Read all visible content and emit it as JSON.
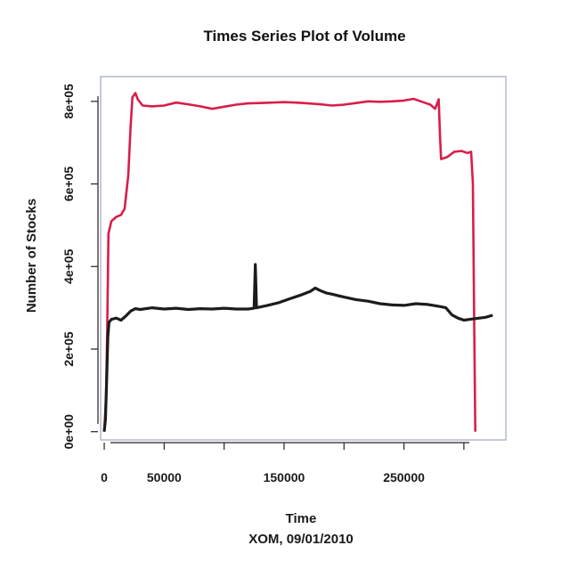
{
  "chart_data": {
    "type": "line",
    "title": "Times Series Plot of Volume",
    "xlabel": "Time",
    "subtitle": "XOM, 09/01/2010",
    "ylabel": "Number of Stocks",
    "xlim": [
      -3000,
      335000
    ],
    "ylim": [
      -20000,
      860000
    ],
    "x_ticks": [
      0,
      50000,
      100000,
      150000,
      200000,
      250000,
      300000
    ],
    "x_tick_labels": [
      "0",
      "50000",
      "",
      "150000",
      "",
      "250000",
      ""
    ],
    "y_ticks": [
      0,
      200000,
      400000,
      600000,
      800000
    ],
    "y_tick_labels": [
      "0e+00",
      "2e+05",
      "4e+05",
      "6e+05",
      "8e+05"
    ],
    "series": [
      {
        "color": "#d81e4a",
        "points": [
          [
            0,
            0
          ],
          [
            1500,
            80000
          ],
          [
            2500,
            250000
          ],
          [
            3500,
            480000
          ],
          [
            6000,
            510000
          ],
          [
            10000,
            520000
          ],
          [
            14000,
            525000
          ],
          [
            17000,
            540000
          ],
          [
            20000,
            620000
          ],
          [
            22000,
            740000
          ],
          [
            23500,
            810000
          ],
          [
            26000,
            820000
          ],
          [
            28000,
            805000
          ],
          [
            32000,
            790000
          ],
          [
            40000,
            788000
          ],
          [
            50000,
            790000
          ],
          [
            60000,
            797000
          ],
          [
            70000,
            793000
          ],
          [
            80000,
            788000
          ],
          [
            90000,
            782000
          ],
          [
            100000,
            787000
          ],
          [
            110000,
            792000
          ],
          [
            120000,
            795000
          ],
          [
            130000,
            796000
          ],
          [
            140000,
            797000
          ],
          [
            150000,
            798000
          ],
          [
            160000,
            797000
          ],
          [
            170000,
            795000
          ],
          [
            180000,
            793000
          ],
          [
            190000,
            790000
          ],
          [
            200000,
            792000
          ],
          [
            210000,
            796000
          ],
          [
            220000,
            800000
          ],
          [
            230000,
            799000
          ],
          [
            240000,
            800000
          ],
          [
            250000,
            802000
          ],
          [
            258000,
            806000
          ],
          [
            266000,
            798000
          ],
          [
            272000,
            792000
          ],
          [
            276000,
            782000
          ],
          [
            279000,
            805000
          ],
          [
            280000,
            720000
          ],
          [
            281000,
            660000
          ],
          [
            286000,
            665000
          ],
          [
            292000,
            678000
          ],
          [
            298000,
            680000
          ],
          [
            303000,
            675000
          ],
          [
            306000,
            678000
          ],
          [
            307500,
            600000
          ],
          [
            308500,
            300000
          ],
          [
            309500,
            0
          ]
        ]
      },
      {
        "color": "#1c1c1c",
        "points": [
          [
            0,
            0
          ],
          [
            1000,
            30000
          ],
          [
            2000,
            120000
          ],
          [
            3000,
            230000
          ],
          [
            4000,
            265000
          ],
          [
            6000,
            272000
          ],
          [
            10000,
            275000
          ],
          [
            14000,
            270000
          ],
          [
            18000,
            280000
          ],
          [
            22000,
            292000
          ],
          [
            26000,
            298000
          ],
          [
            30000,
            296000
          ],
          [
            40000,
            300000
          ],
          [
            50000,
            297000
          ],
          [
            60000,
            299000
          ],
          [
            70000,
            296000
          ],
          [
            80000,
            298000
          ],
          [
            90000,
            297000
          ],
          [
            100000,
            299000
          ],
          [
            110000,
            297000
          ],
          [
            120000,
            297000
          ],
          [
            125000,
            299000
          ],
          [
            126000,
            405000
          ],
          [
            127000,
            300000
          ],
          [
            135000,
            305000
          ],
          [
            145000,
            312000
          ],
          [
            155000,
            322000
          ],
          [
            165000,
            332000
          ],
          [
            172000,
            340000
          ],
          [
            176000,
            348000
          ],
          [
            180000,
            342000
          ],
          [
            185000,
            336000
          ],
          [
            190000,
            333000
          ],
          [
            200000,
            326000
          ],
          [
            210000,
            320000
          ],
          [
            220000,
            316000
          ],
          [
            230000,
            310000
          ],
          [
            240000,
            307000
          ],
          [
            250000,
            306000
          ],
          [
            260000,
            310000
          ],
          [
            270000,
            308000
          ],
          [
            280000,
            303000
          ],
          [
            285000,
            300000
          ],
          [
            290000,
            283000
          ],
          [
            295000,
            275000
          ],
          [
            300000,
            270000
          ],
          [
            305000,
            272000
          ],
          [
            310000,
            274000
          ],
          [
            318000,
            277000
          ],
          [
            324000,
            282000
          ]
        ]
      }
    ]
  }
}
